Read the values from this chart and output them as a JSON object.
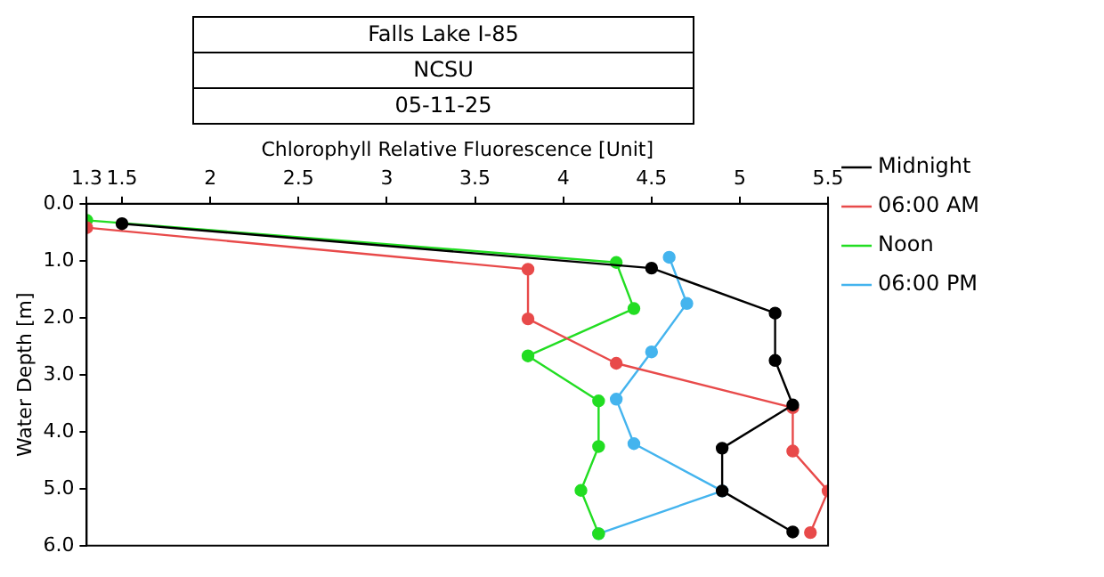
{
  "chart_data": {
    "type": "line",
    "title": "Falls Lake I-85",
    "subtitle": "NCSU",
    "annotations": [
      "05-11-25"
    ],
    "xlabel": "Chlorophyll Relative Fluorescence [Unit]",
    "ylabel": "Water Depth [m]",
    "xlim": [
      1.3,
      5.5
    ],
    "xticks": [
      1.3,
      1.5,
      2,
      2.5,
      3,
      3.5,
      4,
      4.5,
      5,
      5.5
    ],
    "ylim": [
      6,
      0
    ],
    "yticks": [
      {
        "value": 0,
        "label": "0.0"
      },
      {
        "value": 1,
        "label": "1.0"
      },
      {
        "value": 2,
        "label": "2.0"
      },
      {
        "value": 3,
        "label": "3.0"
      },
      {
        "value": 4,
        "label": "4.0"
      },
      {
        "value": 5,
        "label": "5.0"
      },
      {
        "value": 6,
        "label": "6.0"
      }
    ],
    "grid": false,
    "legend": "top right",
    "marker": "circle",
    "line_style": "solid",
    "series": [
      {
        "name": "Midnight",
        "color": "#000000",
        "x": [
          1.5,
          4.5,
          5.2,
          5.2,
          5.3,
          4.9,
          4.9,
          5.3
        ],
        "values": [
          0.35,
          1.13,
          1.92,
          2.75,
          3.53,
          4.29,
          5.04,
          5.76
        ]
      },
      {
        "name": "06:00 AM",
        "color": "#e84a4a",
        "x": [
          1.3,
          3.8,
          3.8,
          4.3,
          5.3,
          5.3,
          5.5,
          5.4
        ],
        "values": [
          0.42,
          1.15,
          2.02,
          2.8,
          3.58,
          4.34,
          5.04,
          5.77
        ]
      },
      {
        "name": "Noon",
        "color": "#22dd22",
        "x": [
          1.3,
          4.3,
          4.4,
          3.8,
          4.2,
          4.2,
          4.1,
          4.2
        ],
        "values": [
          0.29,
          1.03,
          1.84,
          2.67,
          3.46,
          4.26,
          5.03,
          5.79
        ]
      },
      {
        "name": "06:00 PM",
        "color": "#44b4ee",
        "x": [
          4.6,
          4.7,
          4.5,
          4.3,
          4.4,
          4.9,
          4.2
        ],
        "values": [
          0.94,
          1.75,
          2.6,
          3.43,
          4.21,
          5.04,
          5.79
        ]
      }
    ]
  }
}
